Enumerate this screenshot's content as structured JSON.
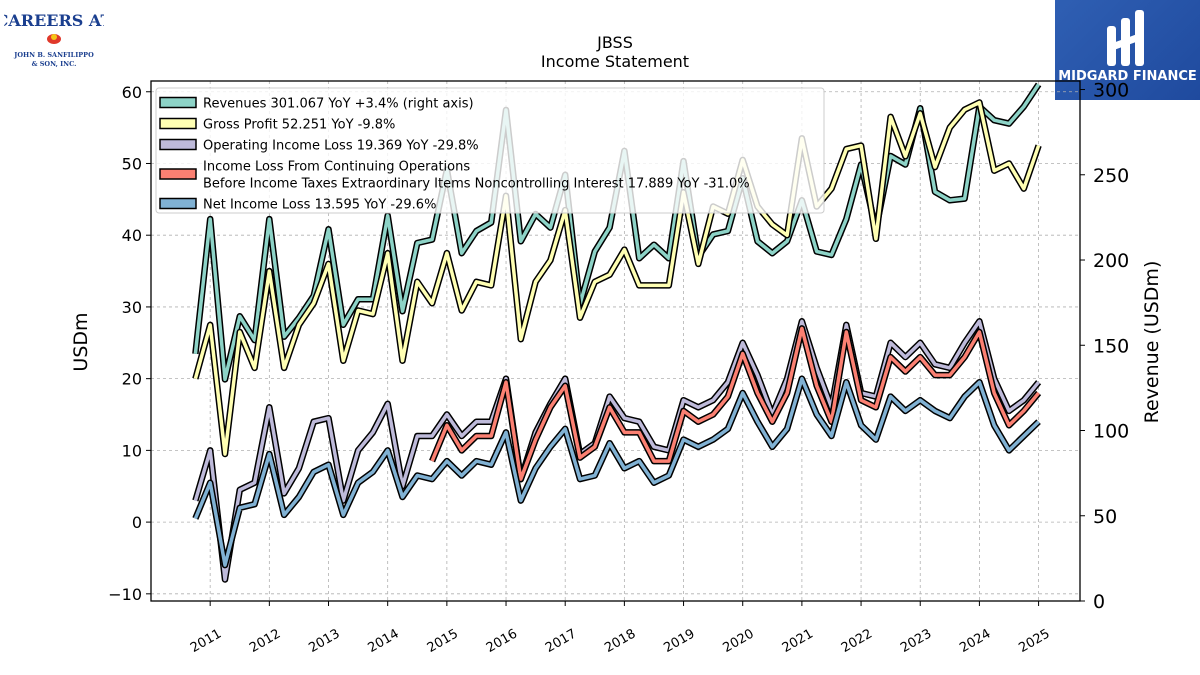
{
  "logos": {
    "left_line1": "CAREERS AT",
    "left_line2": "JOHN B. SANFILIPPO",
    "left_line3": "& SON, INC.",
    "right": "MIDGARD FINANCE"
  },
  "chart_data": {
    "type": "line",
    "title": "JBSS",
    "subtitle": "Income Statement",
    "ylabel_left": "USDm",
    "ylabel_right": "Revenue (USDm)",
    "ylim_left": [
      -11,
      61.5
    ],
    "ylim_right": [
      0,
      305
    ],
    "yticks_left": [
      -10,
      0,
      10,
      20,
      30,
      40,
      50,
      60
    ],
    "yticks_right": [
      0,
      50,
      100,
      150,
      200,
      250,
      300
    ],
    "xlim": [
      2010.0,
      2025.7
    ],
    "xticks": [
      2011,
      2012,
      2013,
      2014,
      2015,
      2016,
      2017,
      2018,
      2019,
      2020,
      2021,
      2022,
      2023,
      2024,
      2025
    ],
    "grid": true,
    "legend": "top-left",
    "series": [
      {
        "name": "Revenues  301.067 YoY +3.4% (right axis)",
        "axis": "right",
        "color": "#8dd3c7",
        "x": [
          2010.75,
          2011.0,
          2011.25,
          2011.5,
          2011.75,
          2012.0,
          2012.25,
          2012.5,
          2012.75,
          2013.0,
          2013.25,
          2013.5,
          2013.75,
          2014.0,
          2014.25,
          2014.5,
          2014.75,
          2015.0,
          2015.25,
          2015.5,
          2015.75,
          2016.0,
          2016.25,
          2016.5,
          2016.75,
          2017.0,
          2017.25,
          2017.5,
          2017.75,
          2018.0,
          2018.25,
          2018.5,
          2018.75,
          2019.0,
          2019.25,
          2019.5,
          2019.75,
          2020.0,
          2020.25,
          2020.5,
          2020.75,
          2021.0,
          2021.25,
          2021.5,
          2021.75,
          2022.0,
          2022.25,
          2022.5,
          2022.75,
          2023.0,
          2023.25,
          2023.5,
          2023.75,
          2024.0,
          2024.25,
          2024.5,
          2024.75,
          2025.0
        ],
        "y": [
          145,
          224,
          130,
          167,
          153,
          224,
          155,
          166,
          179,
          218,
          162,
          177,
          177,
          226,
          170,
          210,
          212,
          253,
          204,
          217,
          222,
          288,
          211,
          227,
          219,
          250,
          174,
          205,
          219,
          264,
          201,
          209,
          201,
          258,
          202,
          215,
          217,
          248,
          211,
          204,
          211,
          235,
          205,
          203,
          224,
          256,
          218,
          261,
          256,
          289,
          240,
          235,
          236,
          290,
          282,
          280,
          290,
          303
        ]
      },
      {
        "name": "Gross Profit  52.251 YoY -9.8%",
        "axis": "left",
        "color": "#ffffb3",
        "x": [
          2010.75,
          2011.0,
          2011.25,
          2011.5,
          2011.75,
          2012.0,
          2012.25,
          2012.5,
          2012.75,
          2013.0,
          2013.25,
          2013.5,
          2013.75,
          2014.0,
          2014.25,
          2014.5,
          2014.75,
          2015.0,
          2015.25,
          2015.5,
          2015.75,
          2016.0,
          2016.25,
          2016.5,
          2016.75,
          2017.0,
          2017.25,
          2017.5,
          2017.75,
          2018.0,
          2018.25,
          2018.5,
          2018.75,
          2019.0,
          2019.25,
          2019.5,
          2019.75,
          2020.0,
          2020.25,
          2020.5,
          2020.75,
          2021.0,
          2021.25,
          2021.5,
          2021.75,
          2022.0,
          2022.25,
          2022.5,
          2022.75,
          2023.0,
          2023.25,
          2023.5,
          2023.75,
          2024.0,
          2024.25,
          2024.5,
          2024.75,
          2025.0
        ],
        "y": [
          20,
          27.5,
          9.5,
          26.5,
          21.5,
          35,
          21.5,
          27.5,
          30.5,
          36,
          22.5,
          29.5,
          29,
          37.5,
          22.5,
          33.5,
          30.5,
          37.5,
          29.5,
          33.5,
          33,
          45.5,
          25.5,
          33.5,
          36.5,
          43.5,
          28.5,
          33.5,
          34.5,
          38,
          33,
          33,
          33,
          46,
          36,
          44,
          43,
          50.5,
          44,
          41.5,
          40,
          53.5,
          44,
          46.5,
          52,
          52.5,
          39.5,
          56.5,
          51,
          57,
          49.5,
          55,
          57.5,
          58.5,
          49,
          50,
          46.5,
          52.5
        ]
      },
      {
        "name": "Operating Income Loss  19.369 YoY -29.8%",
        "axis": "left",
        "color": "#bebada",
        "x": [
          2010.75,
          2011.0,
          2011.25,
          2011.5,
          2011.75,
          2012.0,
          2012.25,
          2012.5,
          2012.75,
          2013.0,
          2013.25,
          2013.5,
          2013.75,
          2014.0,
          2014.25,
          2014.5,
          2014.75,
          2015.0,
          2015.25,
          2015.5,
          2015.75,
          2016.0,
          2016.25,
          2016.5,
          2016.75,
          2017.0,
          2017.25,
          2017.5,
          2017.75,
          2018.0,
          2018.25,
          2018.5,
          2018.75,
          2019.0,
          2019.25,
          2019.5,
          2019.75,
          2020.0,
          2020.25,
          2020.5,
          2020.75,
          2021.0,
          2021.25,
          2021.5,
          2021.75,
          2022.0,
          2022.25,
          2022.5,
          2022.75,
          2023.0,
          2023.25,
          2023.5,
          2023.75,
          2024.0,
          2024.25,
          2024.5,
          2024.75,
          2025.0
        ],
        "y": [
          3,
          10,
          -8,
          4.5,
          5.5,
          16,
          4,
          7.5,
          14,
          14.5,
          3,
          10,
          12.5,
          16.5,
          5,
          12,
          12,
          15,
          12,
          14,
          14,
          20,
          6,
          12.5,
          16.5,
          20,
          9.5,
          11,
          17.5,
          14.5,
          14,
          10.5,
          10,
          17,
          16,
          17,
          19.5,
          25,
          20.5,
          15,
          20,
          28,
          21.5,
          16,
          27.5,
          18,
          17.5,
          25,
          23,
          25,
          22,
          21.5,
          25,
          28,
          20,
          15.5,
          17,
          19.5
        ]
      },
      {
        "name": "Income Loss From Continuing Operations\nBefore Income Taxes Extraordinary Items Noncontrolling Interest  17.889 YoY -31.0%",
        "axis": "left",
        "color": "#fb8072",
        "x": [
          2014.75,
          2015.0,
          2015.25,
          2015.5,
          2015.75,
          2016.0,
          2016.25,
          2016.5,
          2016.75,
          2017.0,
          2017.25,
          2017.5,
          2017.75,
          2018.0,
          2018.25,
          2018.5,
          2018.75,
          2019.0,
          2019.25,
          2019.5,
          2019.75,
          2020.0,
          2020.25,
          2020.5,
          2020.75,
          2021.0,
          2021.25,
          2021.5,
          2021.75,
          2022.0,
          2022.25,
          2022.5,
          2022.75,
          2023.0,
          2023.25,
          2023.5,
          2023.75,
          2024.0,
          2024.25,
          2024.5,
          2024.75,
          2025.0
        ],
        "y": [
          8.5,
          13.5,
          10,
          12,
          12,
          19.5,
          6,
          11.5,
          16,
          19,
          9,
          10.5,
          16,
          12.5,
          12.5,
          8.5,
          8.5,
          15.5,
          14,
          15,
          17.5,
          23.5,
          18,
          14,
          18,
          27,
          19,
          14,
          26.5,
          17,
          16,
          23,
          21,
          23,
          20.5,
          20.5,
          23,
          26.5,
          18,
          13.5,
          15.5,
          18
        ]
      },
      {
        "name": "Net Income Loss  13.595 YoY -29.6%",
        "axis": "left",
        "color": "#80b1d3",
        "x": [
          2010.75,
          2011.0,
          2011.25,
          2011.5,
          2011.75,
          2012.0,
          2012.25,
          2012.5,
          2012.75,
          2013.0,
          2013.25,
          2013.5,
          2013.75,
          2014.0,
          2014.25,
          2014.5,
          2014.75,
          2015.0,
          2015.25,
          2015.5,
          2015.75,
          2016.0,
          2016.25,
          2016.5,
          2016.75,
          2017.0,
          2017.25,
          2017.5,
          2017.75,
          2018.0,
          2018.25,
          2018.5,
          2018.75,
          2019.0,
          2019.25,
          2019.5,
          2019.75,
          2020.0,
          2020.25,
          2020.5,
          2020.75,
          2021.0,
          2021.25,
          2021.5,
          2021.75,
          2022.0,
          2022.25,
          2022.5,
          2022.75,
          2023.0,
          2023.25,
          2023.5,
          2023.75,
          2024.0,
          2024.25,
          2024.5,
          2024.75,
          2025.0
        ],
        "y": [
          0.5,
          5.5,
          -6,
          2,
          2.5,
          9.5,
          1,
          3.5,
          7,
          8,
          1,
          5.5,
          7,
          10,
          3.5,
          6.5,
          6,
          8.5,
          6.5,
          8.5,
          8,
          12.5,
          3,
          7.5,
          10.5,
          13,
          6,
          6.5,
          11,
          7.5,
          8.5,
          5.5,
          6.5,
          11.5,
          10.5,
          11.5,
          13,
          18,
          14,
          10.5,
          13,
          20,
          15,
          12,
          19.5,
          13.5,
          11.5,
          17.5,
          15.5,
          17,
          15.5,
          14.5,
          17.5,
          19.5,
          13.5,
          10,
          12,
          14
        ]
      }
    ]
  }
}
